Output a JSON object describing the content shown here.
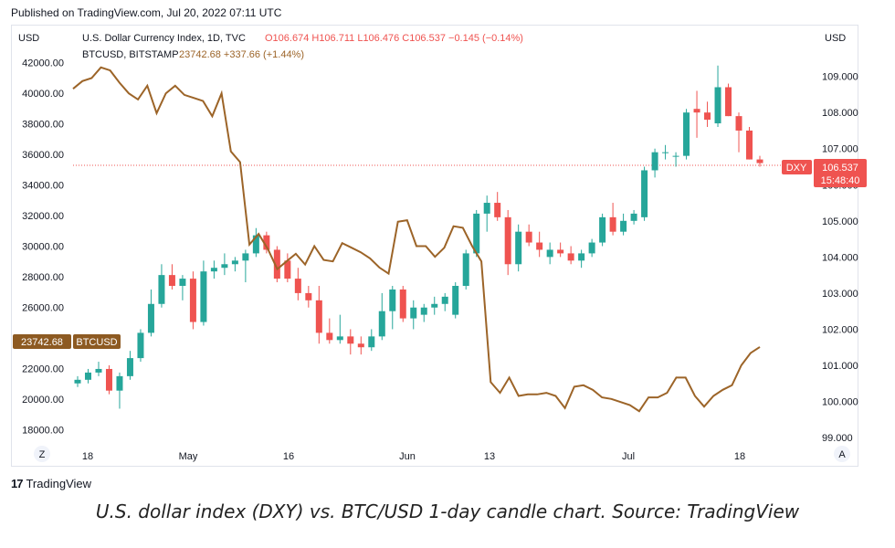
{
  "published": "Published on TradingView.com, Jul 20, 2022 07:11 UTC",
  "footer_brand": "TradingView",
  "caption": "U.S. dollar index (DXY) vs. BTC/USD 1-day candle chart. Source: TradingView",
  "chart_data": {
    "type": "line",
    "title": "U.S. Dollar Currency Index, 1D, TVC",
    "left_axis": {
      "unit": "USD",
      "ylim": [
        17000,
        43000
      ],
      "ticks": [
        "18000.00",
        "20000.00",
        "22000.00",
        "24000.00",
        "26000.00",
        "28000.00",
        "30000.00",
        "32000.00",
        "34000.00",
        "36000.00",
        "38000.00",
        "40000.00",
        "42000.00"
      ]
    },
    "right_axis": {
      "unit": "USD",
      "ylim": [
        98.8,
        109.8
      ],
      "ticks": [
        "99.000",
        "100.000",
        "101.000",
        "102.000",
        "103.000",
        "104.000",
        "105.000",
        "106.000",
        "107.000",
        "108.000",
        "109.000"
      ]
    },
    "x_ticks": [
      "18",
      "May",
      "16",
      "Jun",
      "13",
      "Jul",
      "18"
    ],
    "corner_left": "Z",
    "corner_right": "A",
    "legend": {
      "dxy_name": "U.S. Dollar Currency Index, 1D, TVC",
      "dxy_ohlc": "O106.674 H106.711 L106.476 C106.537 −0.145 (−0.14%)",
      "btc_name": "BTCUSD, BITSTAMP",
      "btc_change": "23742.68 +337.66 (+1.44%)"
    },
    "btc_last": {
      "value": "23742.68",
      "label": "BTCUSD"
    },
    "dxy_last": {
      "label": "DXY",
      "value": "106.537",
      "countdown": "15:48:40"
    },
    "colors": {
      "up": "#26a69a",
      "down": "#ef5350",
      "btc": "#9c6428",
      "label_bg": "#8d5a22"
    },
    "series": [
      {
        "name": "BTCUSD",
        "values": [
          40300,
          40800,
          41000,
          41700,
          41500,
          40700,
          40000,
          39600,
          40500,
          38700,
          40000,
          40500,
          39900,
          39700,
          39500,
          38500,
          40000,
          36200,
          35500,
          30100,
          30800,
          29800,
          28500,
          29000,
          29500,
          28800,
          30000,
          29100,
          29000,
          30200,
          29900,
          29600,
          29200,
          28600,
          28200,
          31600,
          31700,
          30000,
          30000,
          29300,
          29900,
          31300,
          31200,
          30000,
          29000,
          21100,
          20400,
          21400,
          20200,
          20300,
          20300,
          20400,
          20200,
          19400,
          20800,
          20900,
          20600,
          20100,
          20000,
          19800,
          19600,
          19200,
          20100,
          20100,
          20400,
          21400,
          21400,
          20200,
          19500,
          20200,
          20600,
          20900,
          22200,
          23000,
          23400
        ],
        "x_days": [
          0,
          1,
          2,
          3,
          4,
          5,
          6,
          7,
          8,
          9,
          10,
          11,
          12,
          13,
          14,
          15,
          16,
          17,
          18,
          19,
          20,
          21,
          22,
          23,
          24,
          25,
          26,
          27,
          28,
          29,
          30,
          31,
          32,
          33,
          34,
          35,
          36,
          37,
          38,
          39,
          40,
          41,
          42,
          43,
          44,
          45,
          46,
          47,
          48,
          49,
          50,
          51,
          52,
          53,
          54,
          55,
          56,
          57,
          58,
          59,
          60,
          61,
          62,
          63,
          64,
          65,
          66,
          67,
          68,
          69,
          70,
          71,
          72,
          73,
          74
        ]
      },
      {
        "name": "DXY",
        "type": "candlestick",
        "ohlc": [
          [
            100.5,
            100.7,
            100.4,
            100.6
          ],
          [
            100.6,
            100.9,
            100.5,
            100.8
          ],
          [
            100.8,
            101.1,
            100.7,
            100.9
          ],
          [
            100.9,
            101.0,
            100.2,
            100.3
          ],
          [
            100.3,
            100.8,
            99.8,
            100.7
          ],
          [
            100.7,
            101.4,
            100.6,
            101.2
          ],
          [
            101.2,
            102.0,
            101.1,
            101.9
          ],
          [
            101.9,
            103.1,
            101.8,
            102.7
          ],
          [
            102.7,
            103.8,
            102.6,
            103.5
          ],
          [
            103.5,
            103.8,
            103.1,
            103.2
          ],
          [
            103.2,
            103.5,
            102.8,
            103.4
          ],
          [
            103.4,
            103.6,
            102.0,
            102.2
          ],
          [
            102.2,
            103.9,
            102.1,
            103.6
          ],
          [
            103.6,
            103.9,
            103.4,
            103.7
          ],
          [
            103.7,
            104.1,
            103.5,
            103.8
          ],
          [
            103.8,
            104.0,
            103.6,
            103.9
          ],
          [
            103.9,
            104.2,
            103.3,
            104.1
          ],
          [
            104.1,
            104.8,
            104.0,
            104.6
          ],
          [
            104.6,
            104.7,
            104.1,
            104.2
          ],
          [
            104.2,
            104.3,
            103.3,
            103.4
          ],
          [
            103.9,
            104.1,
            103.3,
            103.4
          ],
          [
            103.4,
            103.7,
            102.8,
            103.0
          ],
          [
            103.0,
            103.2,
            102.6,
            102.8
          ],
          [
            102.8,
            103.2,
            101.6,
            101.9
          ],
          [
            101.9,
            102.3,
            101.6,
            101.7
          ],
          [
            101.7,
            102.4,
            101.6,
            101.8
          ],
          [
            101.8,
            102.0,
            101.3,
            101.6
          ],
          [
            101.6,
            101.8,
            101.3,
            101.5
          ],
          [
            101.5,
            102.0,
            101.4,
            101.8
          ],
          [
            101.8,
            103.0,
            101.7,
            102.5
          ],
          [
            102.5,
            103.2,
            102.0,
            103.1
          ],
          [
            103.1,
            103.2,
            102.2,
            102.3
          ],
          [
            102.3,
            102.8,
            102.0,
            102.6
          ],
          [
            102.4,
            102.7,
            102.2,
            102.6
          ],
          [
            102.6,
            102.9,
            102.4,
            102.7
          ],
          [
            102.7,
            103.0,
            102.5,
            102.9
          ],
          [
            102.4,
            103.3,
            102.3,
            103.2
          ],
          [
            103.2,
            104.2,
            103.1,
            104.1
          ],
          [
            104.1,
            105.3,
            104.0,
            105.2
          ],
          [
            105.2,
            105.7,
            104.7,
            105.5
          ],
          [
            105.5,
            105.8,
            105.0,
            105.1
          ],
          [
            105.1,
            105.3,
            103.5,
            103.8
          ],
          [
            103.8,
            104.9,
            103.6,
            104.7
          ],
          [
            104.7,
            104.9,
            104.3,
            104.4
          ],
          [
            104.4,
            104.7,
            104.0,
            104.2
          ],
          [
            104.0,
            104.4,
            103.8,
            104.2
          ],
          [
            104.2,
            104.4,
            104.0,
            104.1
          ],
          [
            104.1,
            104.3,
            103.8,
            103.9
          ],
          [
            103.9,
            104.2,
            103.7,
            104.1
          ],
          [
            104.1,
            104.5,
            104.0,
            104.4
          ],
          [
            104.4,
            105.2,
            104.3,
            105.1
          ],
          [
            105.1,
            105.5,
            104.6,
            104.7
          ],
          [
            104.7,
            105.2,
            104.6,
            105.0
          ],
          [
            105.0,
            105.3,
            104.9,
            105.2
          ],
          [
            105.1,
            106.5,
            105.0,
            106.4
          ],
          [
            106.4,
            107.0,
            106.2,
            106.9
          ],
          [
            106.9,
            107.1,
            106.7,
            106.9
          ],
          [
            106.8,
            106.9,
            106.5,
            106.8
          ],
          [
            106.8,
            108.1,
            106.7,
            108.0
          ],
          [
            108.1,
            108.6,
            107.3,
            108.0
          ],
          [
            108.0,
            108.3,
            107.6,
            107.8
          ],
          [
            107.7,
            109.3,
            107.6,
            108.7
          ],
          [
            108.7,
            108.8,
            107.9,
            107.9
          ],
          [
            107.9,
            108.0,
            106.9,
            107.5
          ],
          [
            107.5,
            107.6,
            106.7,
            106.7
          ],
          [
            106.7,
            106.8,
            106.5,
            106.6
          ]
        ]
      }
    ],
    "dxy_current": 106.537
  }
}
